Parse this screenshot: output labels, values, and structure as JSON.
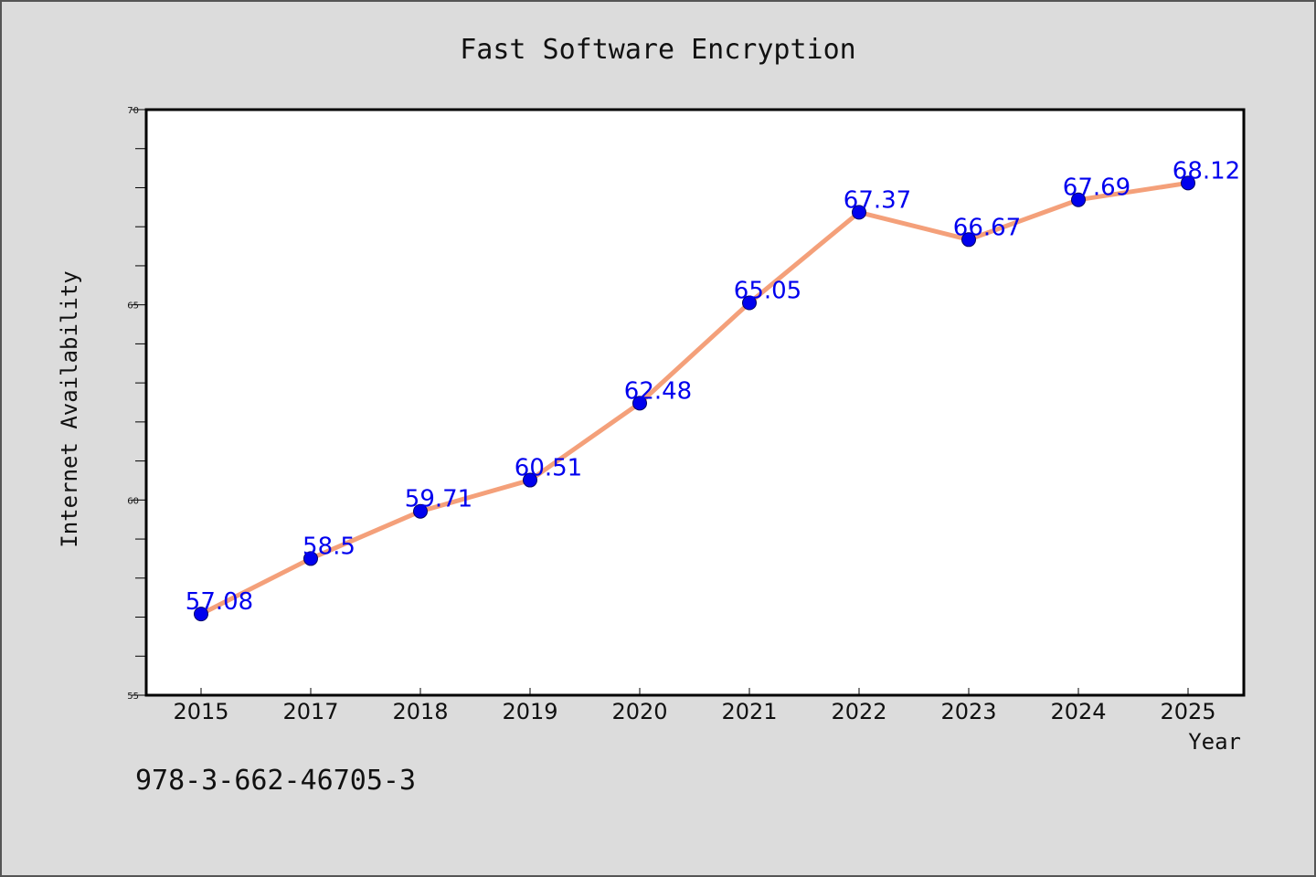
{
  "chart_data": {
    "type": "line",
    "title": "Fast Software Encryption",
    "xlabel": "Year",
    "ylabel": "Internet Availability",
    "categories": [
      "2015",
      "2017",
      "2018",
      "2019",
      "2020",
      "2021",
      "2022",
      "2023",
      "2024",
      "2025"
    ],
    "series": [
      {
        "values": [
          57.08,
          58.5,
          59.71,
          60.51,
          62.48,
          65.05,
          67.37,
          66.67,
          67.69,
          68.12
        ],
        "labels": [
          "57.08",
          "58.5",
          "59.71",
          "60.51",
          "62.48",
          "65.05",
          "67.37",
          "66.67",
          "67.69",
          "68.12"
        ],
        "line_color": "#f4a07a",
        "marker_color": "#0000ee",
        "label_color": "#0000ee"
      }
    ],
    "ylim": [
      55,
      70
    ],
    "yticks": [
      55,
      60,
      65,
      70
    ],
    "ytick_labels": [
      "55",
      "60",
      "65",
      "70"
    ],
    "grid": false,
    "legend": "none"
  },
  "footer": {
    "isbn": "978-3-662-46705-3"
  },
  "colors": {
    "background": "#dcdcdc",
    "plot_background": "#ffffff",
    "axis": "#000000"
  }
}
